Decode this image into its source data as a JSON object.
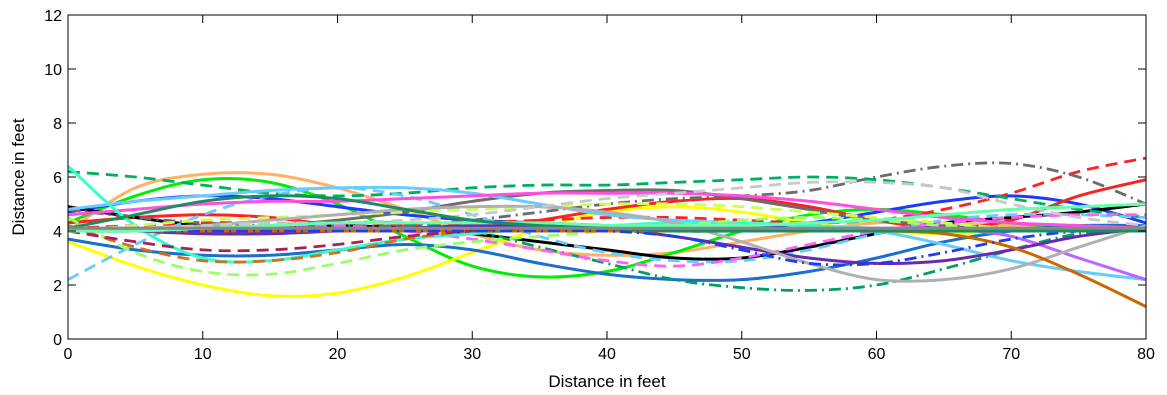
{
  "chart_data": {
    "type": "line",
    "title": "",
    "xlabel": "Distance in feet",
    "ylabel": "Distance in feet",
    "xlim": [
      0,
      80
    ],
    "ylim": [
      0,
      12
    ],
    "xticks": [
      "0",
      "10",
      "20",
      "30",
      "40",
      "50",
      "60",
      "70",
      "80"
    ],
    "yticks": [
      "0",
      "2",
      "4",
      "6",
      "8",
      "10",
      "12"
    ],
    "grid": false,
    "legend": "none",
    "x": [
      0,
      5,
      10,
      15,
      20,
      25,
      30,
      35,
      40,
      45,
      50,
      55,
      60,
      65,
      70,
      75,
      80
    ],
    "series": [
      {
        "color": "#ffb266",
        "style": "solid",
        "values": [
          4.0,
          5.6,
          6.1,
          6.1,
          5.6,
          4.8,
          3.9,
          3.3,
          3.1,
          3.2,
          3.6,
          4.0,
          4.3,
          4.3,
          4.2,
          4.1,
          4.0
        ]
      },
      {
        "color": "#00ee00",
        "style": "solid",
        "values": [
          4.3,
          5.3,
          5.9,
          5.8,
          5.0,
          3.8,
          2.7,
          2.3,
          2.5,
          3.2,
          4.0,
          4.6,
          4.8,
          4.6,
          4.3,
          4.1,
          4.0
        ]
      },
      {
        "color": "#ffff00",
        "style": "solid",
        "values": [
          3.6,
          2.7,
          2.0,
          1.6,
          1.7,
          2.3,
          3.2,
          4.1,
          4.7,
          4.9,
          4.7,
          4.3,
          4.0,
          3.9,
          4.0,
          4.1,
          4.1
        ]
      },
      {
        "color": "#1a3aff",
        "style": "solid",
        "values": [
          4.7,
          5.1,
          5.3,
          5.2,
          4.9,
          4.6,
          4.4,
          4.3,
          4.2,
          4.1,
          4.1,
          4.3,
          4.7,
          5.1,
          5.3,
          5.0,
          4.3
        ]
      },
      {
        "color": "#ff2020",
        "style": "solid",
        "values": [
          4.3,
          4.5,
          4.6,
          4.5,
          4.2,
          4.0,
          4.1,
          4.4,
          4.8,
          5.1,
          5.2,
          4.9,
          4.4,
          4.1,
          4.4,
          5.3,
          5.9
        ]
      },
      {
        "color": "#ff2020",
        "style": "dash",
        "values": [
          4.1,
          4.2,
          4.3,
          4.3,
          4.2,
          4.2,
          4.3,
          4.4,
          4.5,
          4.5,
          4.4,
          4.3,
          4.4,
          4.8,
          5.4,
          6.2,
          6.7
        ]
      },
      {
        "color": "#000000",
        "style": "solid",
        "values": [
          4.9,
          4.5,
          4.2,
          4.1,
          4.2,
          4.1,
          3.9,
          3.6,
          3.3,
          3.0,
          3.0,
          3.4,
          3.9,
          4.3,
          4.5,
          4.7,
          5.0
        ]
      },
      {
        "color": "#1a6fcc",
        "style": "solid",
        "values": [
          3.7,
          3.3,
          3.1,
          3.1,
          3.3,
          3.5,
          3.3,
          2.8,
          2.4,
          2.2,
          2.2,
          2.5,
          3.0,
          3.6,
          4.0,
          4.2,
          4.2
        ]
      },
      {
        "color": "#6c6c6c",
        "style": "solid",
        "values": [
          4.0,
          4.0,
          4.1,
          4.2,
          4.4,
          4.7,
          5.1,
          5.4,
          5.5,
          5.5,
          5.2,
          4.8,
          4.4,
          4.2,
          4.1,
          4.1,
          4.1
        ]
      },
      {
        "color": "#6c6c6c",
        "style": "dashdot",
        "values": [
          4.8,
          4.5,
          4.3,
          4.2,
          4.2,
          4.2,
          4.4,
          4.7,
          5.0,
          5.2,
          5.3,
          5.5,
          6.0,
          6.4,
          6.5,
          6.0,
          5.0
        ]
      },
      {
        "color": "#00b060",
        "style": "dash",
        "values": [
          6.2,
          6.0,
          5.7,
          5.4,
          5.3,
          5.4,
          5.6,
          5.7,
          5.7,
          5.8,
          5.9,
          6.0,
          5.9,
          5.6,
          5.2,
          4.8,
          4.5
        ]
      },
      {
        "color": "#00a060",
        "style": "dashdot",
        "values": [
          4.0,
          4.0,
          4.1,
          4.2,
          4.3,
          4.3,
          4.0,
          3.4,
          2.8,
          2.2,
          1.9,
          1.8,
          2.0,
          2.6,
          3.3,
          3.9,
          4.1
        ]
      },
      {
        "color": "#66ccff",
        "style": "solid",
        "values": [
          4.8,
          5.1,
          5.3,
          5.5,
          5.6,
          5.6,
          5.4,
          5.0,
          4.6,
          4.4,
          4.3,
          4.2,
          4.0,
          3.5,
          2.9,
          2.5,
          2.2
        ]
      },
      {
        "color": "#66ccff",
        "style": "dash",
        "values": [
          2.2,
          3.5,
          4.6,
          5.3,
          5.6,
          5.3,
          4.6,
          3.8,
          3.2,
          2.9,
          2.9,
          3.3,
          3.9,
          4.4,
          4.6,
          4.6,
          4.5
        ]
      },
      {
        "color": "#ff4fe0",
        "style": "solid",
        "values": [
          4.6,
          4.8,
          5.0,
          5.1,
          5.1,
          5.2,
          5.3,
          5.4,
          5.4,
          5.4,
          5.3,
          5.1,
          4.8,
          4.5,
          4.3,
          4.2,
          4.1
        ]
      },
      {
        "color": "#ff5fff",
        "style": "dash",
        "values": [
          4.0,
          4.0,
          4.1,
          4.2,
          4.2,
          4.0,
          3.7,
          3.3,
          2.9,
          2.7,
          3.0,
          3.5,
          4.0,
          4.3,
          4.5,
          4.6,
          4.6
        ]
      },
      {
        "color": "#33ffcc",
        "style": "solid",
        "values": [
          6.4,
          4.2,
          3.0,
          2.9,
          3.3,
          3.7,
          3.9,
          4.1,
          4.2,
          4.3,
          4.3,
          4.2,
          4.1,
          4.0,
          4.0,
          4.0,
          4.0
        ]
      },
      {
        "color": "#99ff66",
        "style": "dash",
        "values": [
          4.5,
          3.2,
          2.5,
          2.4,
          2.8,
          3.3,
          3.6,
          3.8,
          4.0,
          4.2,
          4.4,
          4.5,
          4.4,
          4.2,
          4.1,
          4.0,
          4.0
        ]
      },
      {
        "color": "#ccff55",
        "style": "dash",
        "values": [
          4.0,
          4.2,
          4.4,
          4.5,
          4.6,
          4.7,
          4.8,
          4.9,
          5.0,
          5.0,
          4.9,
          4.7,
          4.5,
          4.3,
          4.1,
          4.0,
          4.0
        ]
      },
      {
        "color": "#bb66ff",
        "style": "solid",
        "values": [
          4.1,
          4.1,
          4.1,
          4.1,
          4.1,
          4.1,
          4.1,
          4.1,
          4.1,
          4.1,
          4.1,
          4.1,
          4.1,
          4.1,
          3.8,
          3.0,
          2.2
        ]
      },
      {
        "color": "#6a2ab0",
        "style": "solid",
        "values": [
          4.1,
          4.0,
          3.9,
          3.9,
          4.0,
          4.1,
          4.2,
          4.2,
          4.1,
          3.8,
          3.4,
          3.0,
          2.8,
          2.9,
          3.3,
          3.8,
          4.1
        ]
      },
      {
        "color": "#b0b0b0",
        "style": "solid",
        "values": [
          4.0,
          4.1,
          4.2,
          4.4,
          4.6,
          4.8,
          4.9,
          4.9,
          4.7,
          4.3,
          3.6,
          2.8,
          2.2,
          2.2,
          2.6,
          3.4,
          4.2
        ]
      },
      {
        "color": "#c8c8c8",
        "style": "dash",
        "values": [
          4.0,
          4.1,
          4.2,
          4.3,
          4.3,
          4.4,
          4.6,
          4.9,
          5.2,
          5.4,
          5.6,
          5.8,
          5.8,
          5.6,
          5.0,
          4.5,
          4.2
        ]
      },
      {
        "color": "#cc6600",
        "style": "solid",
        "values": [
          4.0,
          4.0,
          4.0,
          4.0,
          4.0,
          4.0,
          4.0,
          4.0,
          4.0,
          4.0,
          4.0,
          4.0,
          4.0,
          3.9,
          3.4,
          2.4,
          1.2
        ]
      },
      {
        "color": "#d07020",
        "style": "dash",
        "values": [
          4.2,
          3.4,
          2.9,
          2.9,
          3.2,
          3.7,
          4.0,
          4.1,
          4.1,
          4.0,
          4.0,
          4.0,
          4.0,
          4.0,
          4.0,
          4.0,
          4.0
        ]
      },
      {
        "color": "#aa2255",
        "style": "dash",
        "values": [
          4.0,
          3.6,
          3.3,
          3.3,
          3.5,
          3.8,
          4.0,
          4.1,
          4.1,
          4.0,
          4.0,
          4.0,
          4.0,
          4.0,
          4.0,
          4.0,
          4.0
        ]
      },
      {
        "color": "#1a40ee",
        "style": "dashdot",
        "values": [
          4.0,
          4.0,
          4.0,
          4.0,
          4.0,
          4.0,
          4.0,
          4.0,
          4.0,
          3.8,
          3.3,
          2.8,
          2.8,
          3.2,
          3.7,
          4.0,
          4.1
        ]
      },
      {
        "color": "#66ffaa",
        "style": "solid",
        "values": [
          4.0,
          4.0,
          4.1,
          4.2,
          4.3,
          4.3,
          4.3,
          4.3,
          4.2,
          4.2,
          4.2,
          4.3,
          4.4,
          4.6,
          4.8,
          4.9,
          5.0
        ]
      },
      {
        "color": "#1a8e60",
        "style": "solid",
        "values": [
          4.1,
          4.6,
          5.1,
          5.3,
          5.2,
          4.8,
          4.4,
          4.2,
          4.1,
          4.0,
          4.0,
          4.0,
          4.0,
          4.0,
          4.0,
          4.0,
          4.0
        ]
      },
      {
        "color": "#888888",
        "style": "solid",
        "values": [
          4.1,
          4.1,
          4.1,
          4.1,
          4.1,
          4.1,
          4.1,
          4.1,
          4.1,
          4.1,
          4.1,
          4.1,
          4.1,
          4.1,
          4.1,
          4.1,
          4.1
        ]
      }
    ]
  }
}
